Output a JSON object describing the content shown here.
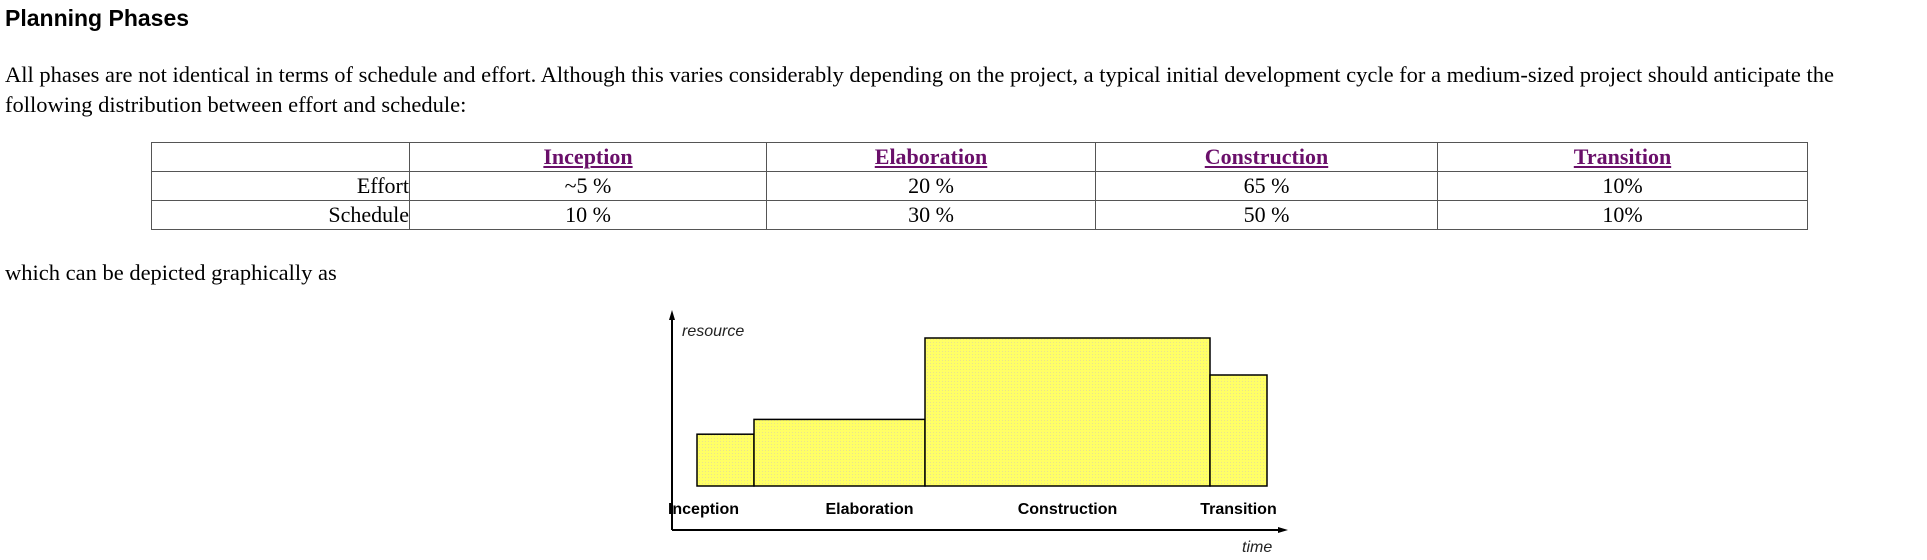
{
  "page": {
    "title": "Planning Phases",
    "intro": "All phases are not identical in terms of schedule and effort. Although this varies considerably depending on the project, a typical initial development cycle for a medium-sized project should anticipate the following distribution between effort and schedule:",
    "caption": "which can be depicted graphically as"
  },
  "table": {
    "headers": [
      "",
      "Inception",
      "Elaboration",
      "Construction",
      "Transition"
    ],
    "rows": [
      {
        "label": "Effort",
        "values": [
          "~5 %",
          "20 %",
          "65 %",
          "10%"
        ]
      },
      {
        "label": "Schedule",
        "values": [
          "10 %",
          "30 %",
          "50 %",
          "10%"
        ]
      }
    ],
    "link_color": "#6a0f6a"
  },
  "diagram": {
    "y_axis_label": "resource",
    "x_axis_label": "time",
    "fill_color": "#ffff66",
    "phases": [
      {
        "name": "Inception",
        "schedule_pct": 10,
        "resource_level": 0.35
      },
      {
        "name": "Elaboration",
        "schedule_pct": 30,
        "resource_level": 0.45
      },
      {
        "name": "Construction",
        "schedule_pct": 50,
        "resource_level": 1.0
      },
      {
        "name": "Transition",
        "schedule_pct": 10,
        "resource_level": 0.75
      }
    ]
  }
}
